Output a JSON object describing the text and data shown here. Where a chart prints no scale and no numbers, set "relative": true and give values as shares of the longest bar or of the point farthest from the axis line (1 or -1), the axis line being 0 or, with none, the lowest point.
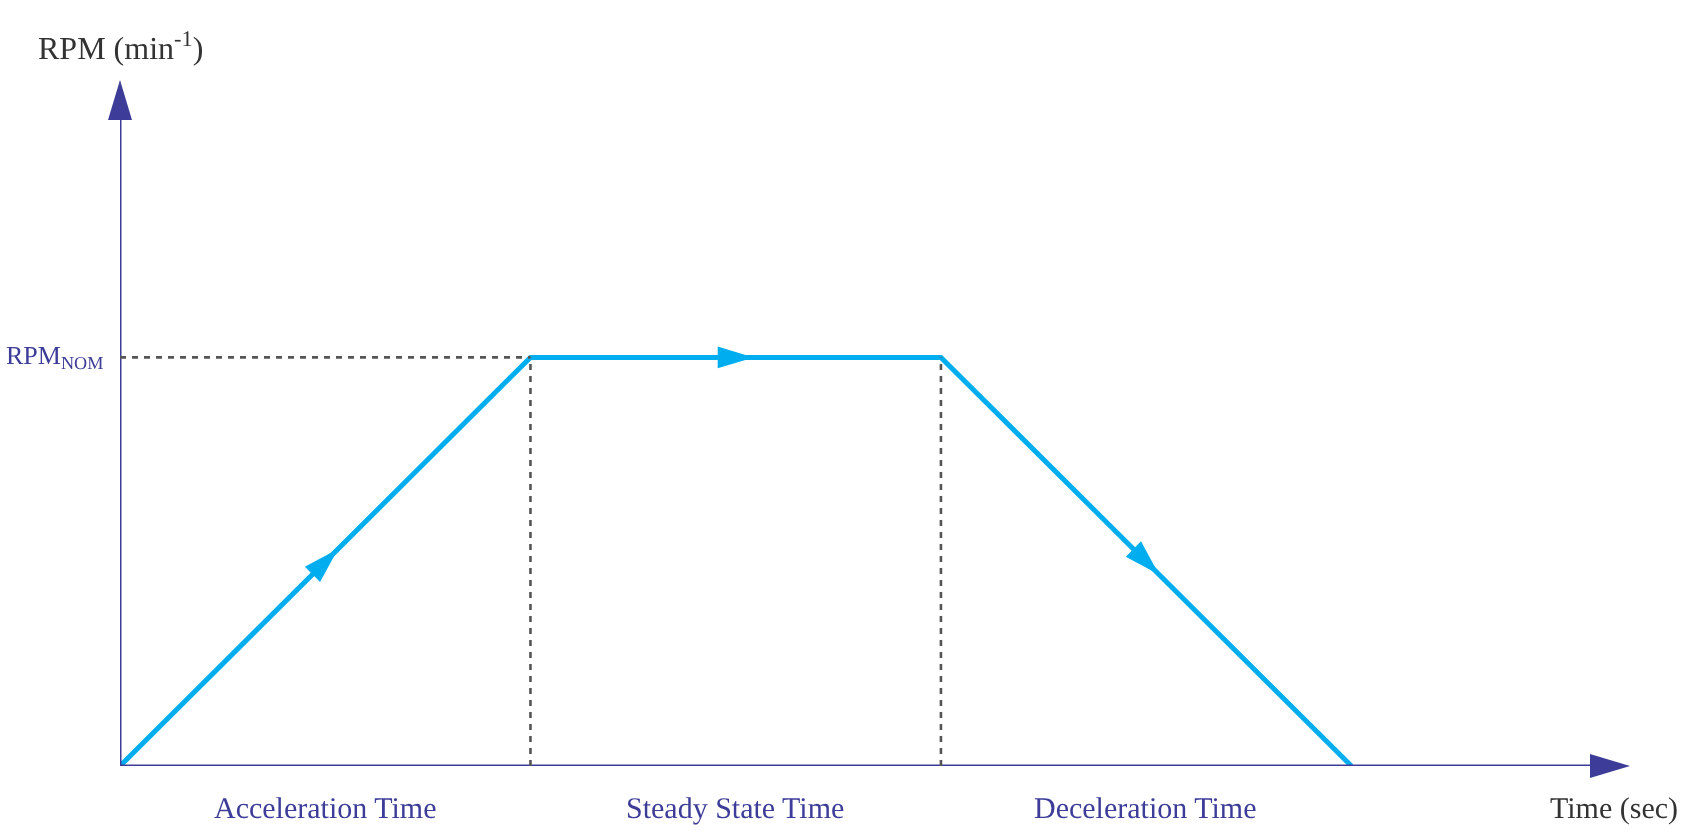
{
  "chart_data": {
    "type": "line",
    "relative": true,
    "xlabel": "Time (sec)",
    "categories": [
      null,
      null,
      null,
      null
    ],
    "values": [
      0,
      1,
      1,
      0
    ],
    "color": "#00aeef",
    "marker": "none",
    "line_style": "solid",
    "ref_lines": [
      {
        "axis": "y",
        "value": 1,
        "label": "RPM$_{NOM}$",
        "line_style": "dotted",
        "color": "#555555"
      }
    ],
    "annotations": [
      "RPM (min$^{-1}$)",
      "Acceleration Time",
      "Steady State Time",
      "Deceleration Time"
    ]
  }
}
